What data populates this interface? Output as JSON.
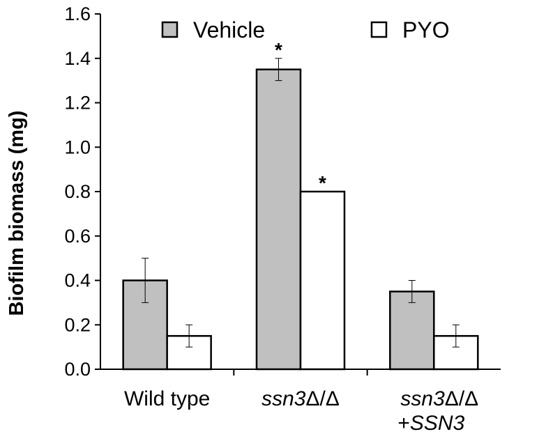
{
  "chart_data": {
    "type": "bar",
    "title": "",
    "xlabel": "",
    "ylabel": "Biofilm biomass (mg)",
    "ylim": [
      0,
      1.6
    ],
    "yticks": [
      "0.0",
      "0.2",
      "0.4",
      "0.6",
      "0.8",
      "1.0",
      "1.2",
      "1.4",
      "1.6"
    ],
    "grid": false,
    "legend_position": "top",
    "categories": [
      {
        "parts": [
          {
            "t": "Wild type",
            "i": false
          }
        ]
      },
      {
        "parts": [
          {
            "t": "ssn3",
            "i": true
          },
          {
            "t": "Δ/Δ",
            "i": false
          }
        ]
      },
      {
        "parts": [
          {
            "t": "ssn3",
            "i": true
          },
          {
            "t": "Δ/Δ",
            "i": false
          }
        ],
        "line2": [
          {
            "t": "+",
            "i": false
          },
          {
            "t": "SSN3",
            "i": true
          }
        ]
      }
    ],
    "series": [
      {
        "name": "Vehicle",
        "color": "#c0c0c0",
        "values": [
          0.4,
          1.35,
          0.35
        ],
        "errors": [
          0.1,
          0.05,
          0.05
        ],
        "significance": [
          "",
          "*",
          ""
        ]
      },
      {
        "name": "PYO",
        "color": "#ffffff",
        "values": [
          0.15,
          0.8,
          0.15
        ],
        "errors": [
          0.05,
          0.0,
          0.05
        ],
        "significance": [
          "",
          "*",
          ""
        ]
      }
    ]
  }
}
